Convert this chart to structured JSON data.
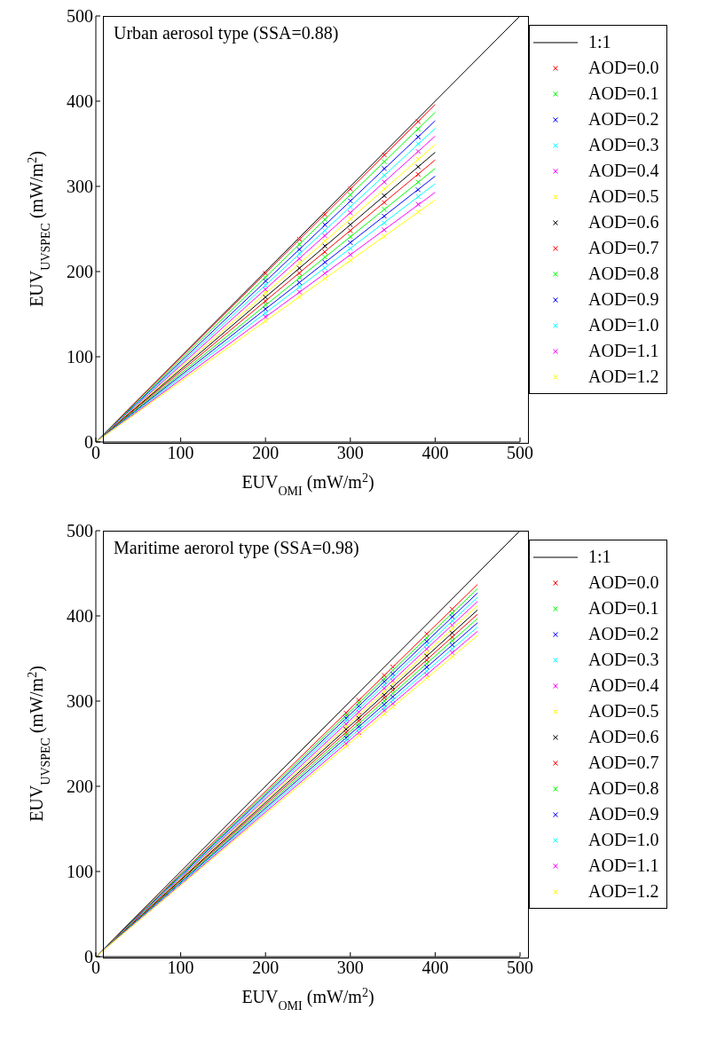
{
  "chart_data": [
    {
      "type": "scatter",
      "xlabel": "EUV$_{OMI}$ (mW/m$^{2}$)",
      "ylabel": "EUV$_{UVSPEC}$ (mW/m$^{2}$)",
      "annotations": [
        "Urban aerosol type (SSA=0.88)"
      ],
      "xlim": [
        0,
        500
      ],
      "ylim": [
        0,
        500
      ],
      "xticks": [
        0,
        100,
        200,
        300,
        400,
        500
      ],
      "yticks": [
        0,
        100,
        200,
        300,
        400,
        500
      ],
      "legend": "right",
      "series": [
        {
          "name": "1:1",
          "type": "line",
          "color": "#000000",
          "x": [
            0,
            500
          ],
          "values": [
            0,
            500
          ]
        },
        {
          "name": "AOD=0.0",
          "color": "#ff0000",
          "marker": "cross",
          "x": [
            200,
            240,
            270,
            300,
            340,
            380
          ],
          "values": [
            198,
            238,
            267,
            297,
            337,
            376
          ]
        },
        {
          "name": "AOD=0.1",
          "color": "#00ff00",
          "marker": "cross",
          "x": [
            200,
            240,
            270,
            300,
            340,
            380
          ],
          "values": [
            193,
            232,
            261,
            290,
            329,
            367
          ]
        },
        {
          "name": "AOD=0.2",
          "color": "#0000ff",
          "marker": "cross",
          "x": [
            200,
            240,
            270,
            300,
            340,
            380
          ],
          "values": [
            189,
            226,
            255,
            283,
            321,
            358
          ]
        },
        {
          "name": "AOD=0.3",
          "color": "#00ffff",
          "marker": "cross",
          "x": [
            200,
            240,
            270,
            300,
            340,
            380
          ],
          "values": [
            184,
            221,
            248,
            276,
            313,
            350
          ]
        },
        {
          "name": "AOD=0.4",
          "color": "#ff00ff",
          "marker": "cross",
          "x": [
            200,
            240,
            270,
            300,
            340,
            380
          ],
          "values": [
            179,
            215,
            242,
            269,
            305,
            341
          ]
        },
        {
          "name": "AOD=0.5",
          "color": "#ffff00",
          "marker": "cross",
          "x": [
            200,
            240,
            270,
            300,
            340,
            380
          ],
          "values": [
            175,
            210,
            236,
            262,
            297,
            332
          ]
        },
        {
          "name": "AOD=0.6",
          "color": "#000000",
          "marker": "cross",
          "x": [
            200,
            240,
            270,
            300,
            340,
            380
          ],
          "values": [
            170,
            204,
            230,
            255,
            289,
            323
          ]
        },
        {
          "name": "AOD=0.7",
          "color": "#ff0000",
          "marker": "cross",
          "x": [
            200,
            240,
            270,
            300,
            340,
            380
          ],
          "values": [
            165,
            198,
            223,
            248,
            281,
            314
          ]
        },
        {
          "name": "AOD=0.8",
          "color": "#00ff00",
          "marker": "cross",
          "x": [
            200,
            240,
            270,
            300,
            340,
            380
          ],
          "values": [
            161,
            193,
            217,
            241,
            273,
            305
          ]
        },
        {
          "name": "AOD=0.9",
          "color": "#0000ff",
          "marker": "cross",
          "x": [
            200,
            240,
            270,
            300,
            340,
            380
          ],
          "values": [
            156,
            187,
            211,
            234,
            265,
            296
          ]
        },
        {
          "name": "AOD=1.0",
          "color": "#00ffff",
          "marker": "cross",
          "x": [
            200,
            240,
            270,
            300,
            340,
            380
          ],
          "values": [
            151,
            182,
            204,
            227,
            257,
            288
          ]
        },
        {
          "name": "AOD=1.1",
          "color": "#ff00ff",
          "marker": "cross",
          "x": [
            200,
            240,
            270,
            300,
            340,
            380
          ],
          "values": [
            147,
            176,
            198,
            220,
            249,
            279
          ]
        },
        {
          "name": "AOD=1.2",
          "color": "#ffff00",
          "marker": "cross",
          "x": [
            200,
            240,
            270,
            300,
            340,
            380
          ],
          "values": [
            142,
            170,
            192,
            213,
            241,
            270
          ]
        },
        {
          "type": "line",
          "color": "#ff0000",
          "x": [
            0,
            400
          ],
          "values": [
            0,
            396
          ]
        },
        {
          "type": "line",
          "color": "#00ff00",
          "x": [
            0,
            400
          ],
          "values": [
            0,
            387
          ]
        },
        {
          "type": "line",
          "color": "#0000ff",
          "x": [
            0,
            400
          ],
          "values": [
            0,
            377
          ]
        },
        {
          "type": "line",
          "color": "#00ffff",
          "x": [
            0,
            400
          ],
          "values": [
            0,
            368
          ]
        },
        {
          "type": "line",
          "color": "#ff00ff",
          "x": [
            0,
            400
          ],
          "values": [
            0,
            359
          ]
        },
        {
          "type": "line",
          "color": "#ffff00",
          "x": [
            0,
            400
          ],
          "values": [
            0,
            349
          ]
        },
        {
          "type": "line",
          "color": "#000000",
          "x": [
            0,
            400
          ],
          "values": [
            0,
            340
          ]
        },
        {
          "type": "line",
          "color": "#ff0000",
          "x": [
            0,
            400
          ],
          "values": [
            0,
            331
          ]
        },
        {
          "type": "line",
          "color": "#00ff00",
          "x": [
            0,
            400
          ],
          "values": [
            0,
            321
          ]
        },
        {
          "type": "line",
          "color": "#0000ff",
          "x": [
            0,
            400
          ],
          "values": [
            0,
            312
          ]
        },
        {
          "type": "line",
          "color": "#00ffff",
          "x": [
            0,
            400
          ],
          "values": [
            0,
            303
          ]
        },
        {
          "type": "line",
          "color": "#ff00ff",
          "x": [
            0,
            400
          ],
          "values": [
            0,
            293
          ]
        },
        {
          "type": "line",
          "color": "#ffff00",
          "x": [
            0,
            400
          ],
          "values": [
            0,
            284
          ]
        }
      ]
    },
    {
      "type": "scatter",
      "xlabel": "EUV$_{OMI}$ (mW/m$^{2}$)",
      "ylabel": "EUV$_{UVSPEC}$ (mW/m$^{2}$)",
      "annotations": [
        "Maritime aerorol type (SSA=0.98)"
      ],
      "xlim": [
        0,
        500
      ],
      "ylim": [
        0,
        500
      ],
      "xticks": [
        0,
        100,
        200,
        300,
        400,
        500
      ],
      "yticks": [
        0,
        100,
        200,
        300,
        400,
        500
      ],
      "legend": "right",
      "series": [
        {
          "name": "1:1",
          "type": "line",
          "color": "#000000",
          "x": [
            0,
            500
          ],
          "values": [
            0,
            500
          ]
        },
        {
          "name": "AOD=0.0",
          "color": "#ff0000",
          "marker": "cross",
          "x": [
            295,
            310,
            340,
            350,
            390,
            420
          ],
          "values": [
            286,
            301,
            330,
            340,
            379,
            408
          ]
        },
        {
          "name": "AOD=0.1",
          "color": "#00ff00",
          "marker": "cross",
          "x": [
            295,
            310,
            340,
            350,
            390,
            420
          ],
          "values": [
            283,
            298,
            326,
            336,
            374,
            403
          ]
        },
        {
          "name": "AOD=0.2",
          "color": "#0000ff",
          "marker": "cross",
          "x": [
            295,
            310,
            340,
            350,
            390,
            420
          ],
          "values": [
            280,
            294,
            323,
            332,
            370,
            399
          ]
        },
        {
          "name": "AOD=0.3",
          "color": "#00ffff",
          "marker": "cross",
          "x": [
            295,
            310,
            340,
            350,
            390,
            420
          ],
          "values": [
            277,
            291,
            319,
            328,
            366,
            394
          ]
        },
        {
          "name": "AOD=0.4",
          "color": "#ff00ff",
          "marker": "cross",
          "x": [
            295,
            310,
            340,
            350,
            390,
            420
          ],
          "values": [
            273,
            287,
            315,
            324,
            361,
            389
          ]
        },
        {
          "name": "AOD=0.5",
          "color": "#ffff00",
          "marker": "cross",
          "x": [
            295,
            310,
            340,
            350,
            390,
            420
          ],
          "values": [
            270,
            284,
            311,
            320,
            357,
            385
          ]
        },
        {
          "name": "AOD=0.6",
          "color": "#000000",
          "marker": "cross",
          "x": [
            295,
            310,
            340,
            350,
            390,
            420
          ],
          "values": [
            267,
            280,
            307,
            316,
            353,
            380
          ]
        },
        {
          "name": "AOD=0.7",
          "color": "#ff0000",
          "marker": "cross",
          "x": [
            295,
            310,
            340,
            350,
            390,
            420
          ],
          "values": [
            263,
            277,
            304,
            313,
            348,
            375
          ]
        },
        {
          "name": "AOD=0.8",
          "color": "#00ff00",
          "marker": "cross",
          "x": [
            295,
            310,
            340,
            350,
            390,
            420
          ],
          "values": [
            260,
            273,
            300,
            309,
            344,
            371
          ]
        },
        {
          "name": "AOD=0.9",
          "color": "#0000ff",
          "marker": "cross",
          "x": [
            295,
            310,
            340,
            350,
            390,
            420
          ],
          "values": [
            257,
            270,
            296,
            305,
            340,
            366
          ]
        },
        {
          "name": "AOD=1.0",
          "color": "#00ffff",
          "marker": "cross",
          "x": [
            295,
            310,
            340,
            350,
            390,
            420
          ],
          "values": [
            254,
            267,
            292,
            301,
            335,
            361
          ]
        },
        {
          "name": "AOD=1.1",
          "color": "#ff00ff",
          "marker": "cross",
          "x": [
            295,
            310,
            340,
            350,
            390,
            420
          ],
          "values": [
            250,
            263,
            289,
            297,
            331,
            357
          ]
        },
        {
          "name": "AOD=1.2",
          "color": "#ffff00",
          "marker": "cross",
          "x": [
            295,
            310,
            340,
            350,
            390,
            420
          ],
          "values": [
            247,
            260,
            285,
            293,
            327,
            352
          ]
        },
        {
          "type": "line",
          "color": "#ff0000",
          "x": [
            0,
            450
          ],
          "values": [
            0,
            437
          ]
        },
        {
          "type": "line",
          "color": "#00ff00",
          "x": [
            0,
            450
          ],
          "values": [
            0,
            432
          ]
        },
        {
          "type": "line",
          "color": "#0000ff",
          "x": [
            0,
            450
          ],
          "values": [
            0,
            427
          ]
        },
        {
          "type": "line",
          "color": "#00ffff",
          "x": [
            0,
            450
          ],
          "values": [
            0,
            422
          ]
        },
        {
          "type": "line",
          "color": "#ff00ff",
          "x": [
            0,
            450
          ],
          "values": [
            0,
            417
          ]
        },
        {
          "type": "line",
          "color": "#ffff00",
          "x": [
            0,
            450
          ],
          "values": [
            0,
            412
          ]
        },
        {
          "type": "line",
          "color": "#000000",
          "x": [
            0,
            450
          ],
          "values": [
            0,
            407
          ]
        },
        {
          "type": "line",
          "color": "#ff0000",
          "x": [
            0,
            450
          ],
          "values": [
            0,
            402
          ]
        },
        {
          "type": "line",
          "color": "#00ff00",
          "x": [
            0,
            450
          ],
          "values": [
            0,
            397
          ]
        },
        {
          "type": "line",
          "color": "#0000ff",
          "x": [
            0,
            450
          ],
          "values": [
            0,
            392
          ]
        },
        {
          "type": "line",
          "color": "#00ffff",
          "x": [
            0,
            450
          ],
          "values": [
            0,
            387
          ]
        },
        {
          "type": "line",
          "color": "#ff00ff",
          "x": [
            0,
            450
          ],
          "values": [
            0,
            382
          ]
        },
        {
          "type": "line",
          "color": "#ffff00",
          "x": [
            0,
            450
          ],
          "values": [
            0,
            377
          ]
        }
      ]
    }
  ]
}
